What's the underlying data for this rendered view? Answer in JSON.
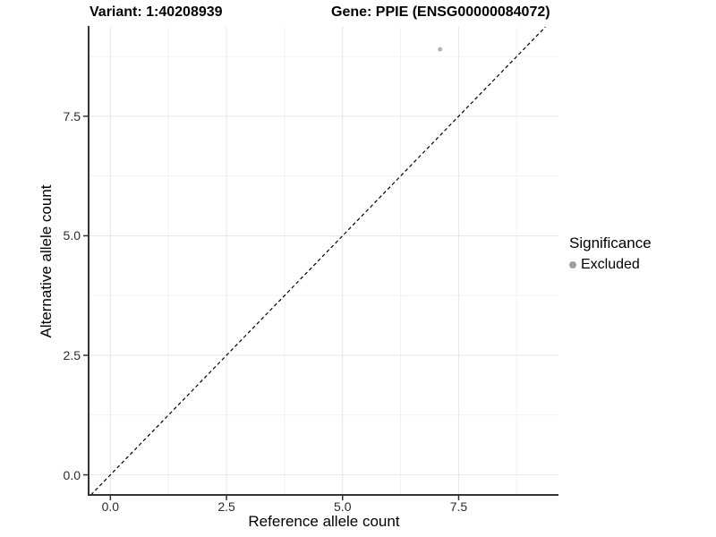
{
  "header": {
    "variant_title": "Variant: 1:40208939",
    "gene_title": "Gene: PPIE (ENSG00000084072)"
  },
  "chart_data": {
    "type": "scatter",
    "xlabel": "Reference allele count",
    "ylabel": "Alternative allele count",
    "xlim": [
      -0.45,
      9.65
    ],
    "ylim": [
      -0.42,
      9.37
    ],
    "x_major_ticks": [
      0.0,
      2.5,
      5.0,
      7.5
    ],
    "x_tick_labels": [
      "0.0",
      "2.5",
      "5.0",
      "7.5"
    ],
    "y_major_ticks": [
      0.0,
      2.5,
      5.0,
      7.5
    ],
    "y_tick_labels": [
      "0.0",
      "2.5",
      "5.0",
      "7.5"
    ],
    "x_minor_ticks": [
      1.25,
      3.75,
      6.25,
      8.75
    ],
    "y_minor_ticks": [
      1.25,
      3.75,
      6.25,
      8.75
    ],
    "grid": true,
    "series": [
      {
        "name": "Excluded",
        "points": [
          [
            7.1,
            8.9
          ]
        ],
        "color": "#b3b3b3",
        "marker_radius": 2.5
      }
    ],
    "reference_line": {
      "type": "identity",
      "style": "dashed",
      "color": "#000000"
    },
    "legend": {
      "title": "Significance",
      "position": "right",
      "items": [
        {
          "label": "Excluded",
          "color": "#9e9e9e"
        }
      ]
    }
  },
  "colors": {
    "background": "#ffffff",
    "grid_major": "#e6e6e6",
    "grid_minor": "#f2f2f2",
    "axis_line": "#333333",
    "tick_mark": "#333333",
    "tick_text": "#2b2b2b"
  }
}
